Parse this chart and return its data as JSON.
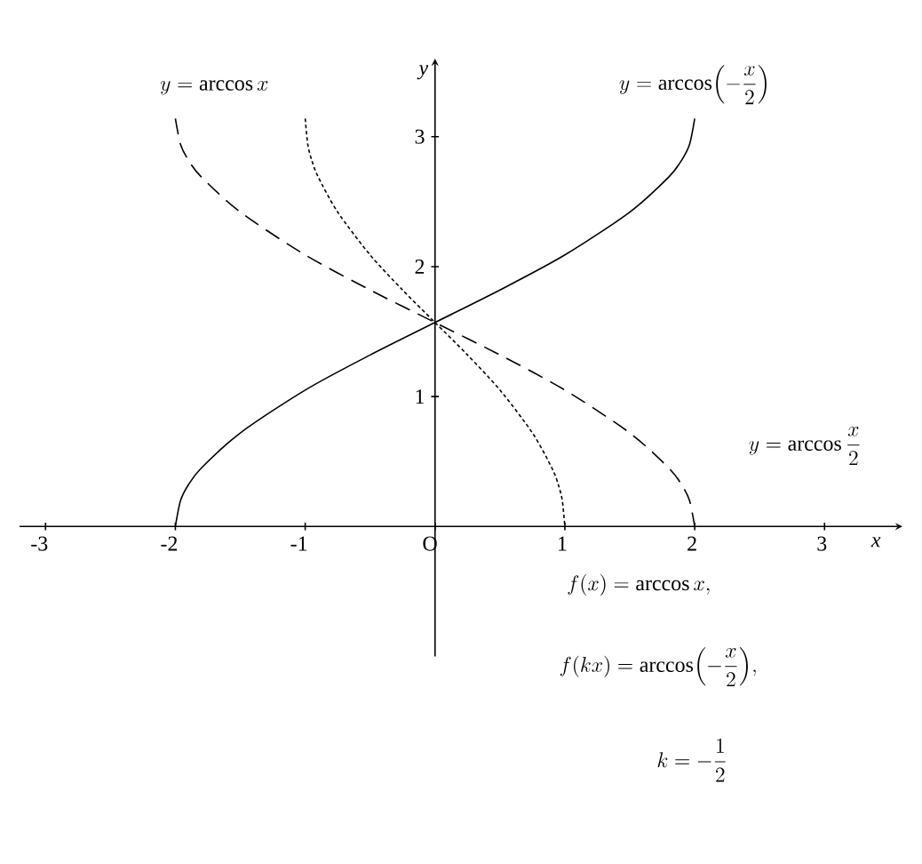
{
  "chart_data": {
    "type": "line",
    "xlabel": "x",
    "ylabel": "y",
    "xlim": [
      -3.2,
      3.6
    ],
    "ylim": [
      -1,
      3.6
    ],
    "xticks": [
      -3,
      -2,
      -1,
      {
        "value": 0,
        "label": "O"
      },
      1,
      2,
      3
    ],
    "yticks": [
      1,
      2,
      3
    ],
    "grid": false,
    "marker": "none",
    "series": [
      {
        "color": "#000000",
        "line_style": "dotted",
        "x": [
          -1,
          -0.98,
          -0.95,
          -0.9,
          -0.75,
          -0.5,
          -0.25,
          0,
          0.25,
          0.5,
          0.75,
          0.9,
          0.95,
          0.98,
          1
        ],
        "values": [
          3.14,
          2.94,
          2.82,
          2.69,
          2.42,
          2.09,
          1.82,
          1.57,
          1.32,
          1.05,
          0.72,
          0.45,
          0.32,
          0.2,
          0
        ]
      },
      {
        "color": "#000000",
        "line_style": "dashed",
        "x": [
          -2,
          -1.96,
          -1.9,
          -1.8,
          -1.5,
          -1,
          -0.5,
          0,
          0.5,
          1,
          1.5,
          1.8,
          1.9,
          1.96,
          2
        ],
        "values": [
          3.14,
          2.94,
          2.82,
          2.69,
          2.42,
          2.09,
          1.82,
          1.57,
          1.32,
          1.05,
          0.72,
          0.45,
          0.32,
          0.2,
          0
        ]
      },
      {
        "color": "#000000",
        "line_style": "solid",
        "x": [
          -2,
          -1.96,
          -1.9,
          -1.8,
          -1.5,
          -1,
          -0.5,
          0,
          0.5,
          1,
          1.5,
          1.8,
          1.9,
          1.96,
          2
        ],
        "values": [
          0,
          0.2,
          0.32,
          0.45,
          0.72,
          1.05,
          1.32,
          1.57,
          1.82,
          2.09,
          2.42,
          2.69,
          2.82,
          2.94,
          3.14
        ]
      }
    ],
    "annotations": [
      "y=\\arccos x",
      "y=\\arccos\\Bigl(-\\dfrac{x}{2}\\Bigr)",
      "y=\\arccos\\dfrac{x}{2}",
      "f(x)=\\arccos x,",
      "f(kx)=\\arccos\\Bigl(-\\dfrac{x}{2}\\Bigr),",
      "k=-\\dfrac{1}{2}"
    ]
  }
}
